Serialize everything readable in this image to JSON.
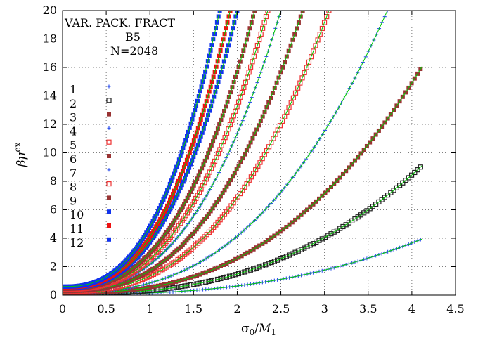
{
  "chart_data": {
    "type": "scatter",
    "title": "",
    "xlabel": "σ0/M1",
    "ylabel": "βμex",
    "xlim": [
      0,
      4.5
    ],
    "ylim": [
      0,
      20
    ],
    "xticks": [
      "0",
      "0.5",
      "1",
      "1.5",
      "2",
      "2.5",
      "3",
      "3.5",
      "4",
      "4.5"
    ],
    "yticks": [
      "0",
      "2",
      "4",
      "6",
      "8",
      "10",
      "12",
      "14",
      "16",
      "18",
      "20"
    ],
    "grid": "dotted",
    "legend_position": "left",
    "annotations": [
      "VAR. PACK. FRACT",
      "B5",
      "N=2048"
    ],
    "fit_color": "#00cc00",
    "series": [
      {
        "name": "1",
        "marker": "plus",
        "color": "#3355ee",
        "y0": 0.05,
        "xmax": 4.1,
        "y_at_xmax": 3.9
      },
      {
        "name": "2",
        "marker": "square",
        "color": "#222222",
        "y0": 0.1,
        "xmax": 4.1,
        "y_at_xmax": 9.0
      },
      {
        "name": "3",
        "marker": "filled",
        "color": "#993333",
        "y0": 0.15,
        "xmax": 4.1,
        "y_at_xmax": 15.9
      },
      {
        "name": "4",
        "marker": "plus",
        "color": "#3355ee",
        "y0": 0.2,
        "xmax": 3.72,
        "y_at_xmax": 20.0
      },
      {
        "name": "5",
        "marker": "square",
        "color": "#ee3333",
        "y0": 0.25,
        "xmax": 3.05,
        "y_at_xmax": 20.0
      },
      {
        "name": "6",
        "marker": "filled",
        "color": "#993333",
        "y0": 0.3,
        "xmax": 2.75,
        "y_at_xmax": 20.0
      },
      {
        "name": "7",
        "marker": "plus",
        "color": "#3355ee",
        "y0": 0.35,
        "xmax": 2.5,
        "y_at_xmax": 20.0
      },
      {
        "name": "8",
        "marker": "square",
        "color": "#ee3333",
        "y0": 0.4,
        "xmax": 2.35,
        "y_at_xmax": 20.0
      },
      {
        "name": "9",
        "marker": "filled",
        "color": "#993333",
        "y0": 0.45,
        "xmax": 2.2,
        "y_at_xmax": 20.0
      },
      {
        "name": "10",
        "marker": "filled",
        "color": "#1133ee",
        "y0": 0.5,
        "xmax": 2.0,
        "y_at_xmax": 20.0
      },
      {
        "name": "11",
        "marker": "filled",
        "color": "#ee1111",
        "y0": 0.55,
        "xmax": 1.92,
        "y_at_xmax": 20.0
      },
      {
        "name": "12",
        "marker": "filled",
        "color": "#1133ee",
        "y0": 0.6,
        "xmax": 1.8,
        "y_at_xmax": 20.0
      }
    ]
  }
}
